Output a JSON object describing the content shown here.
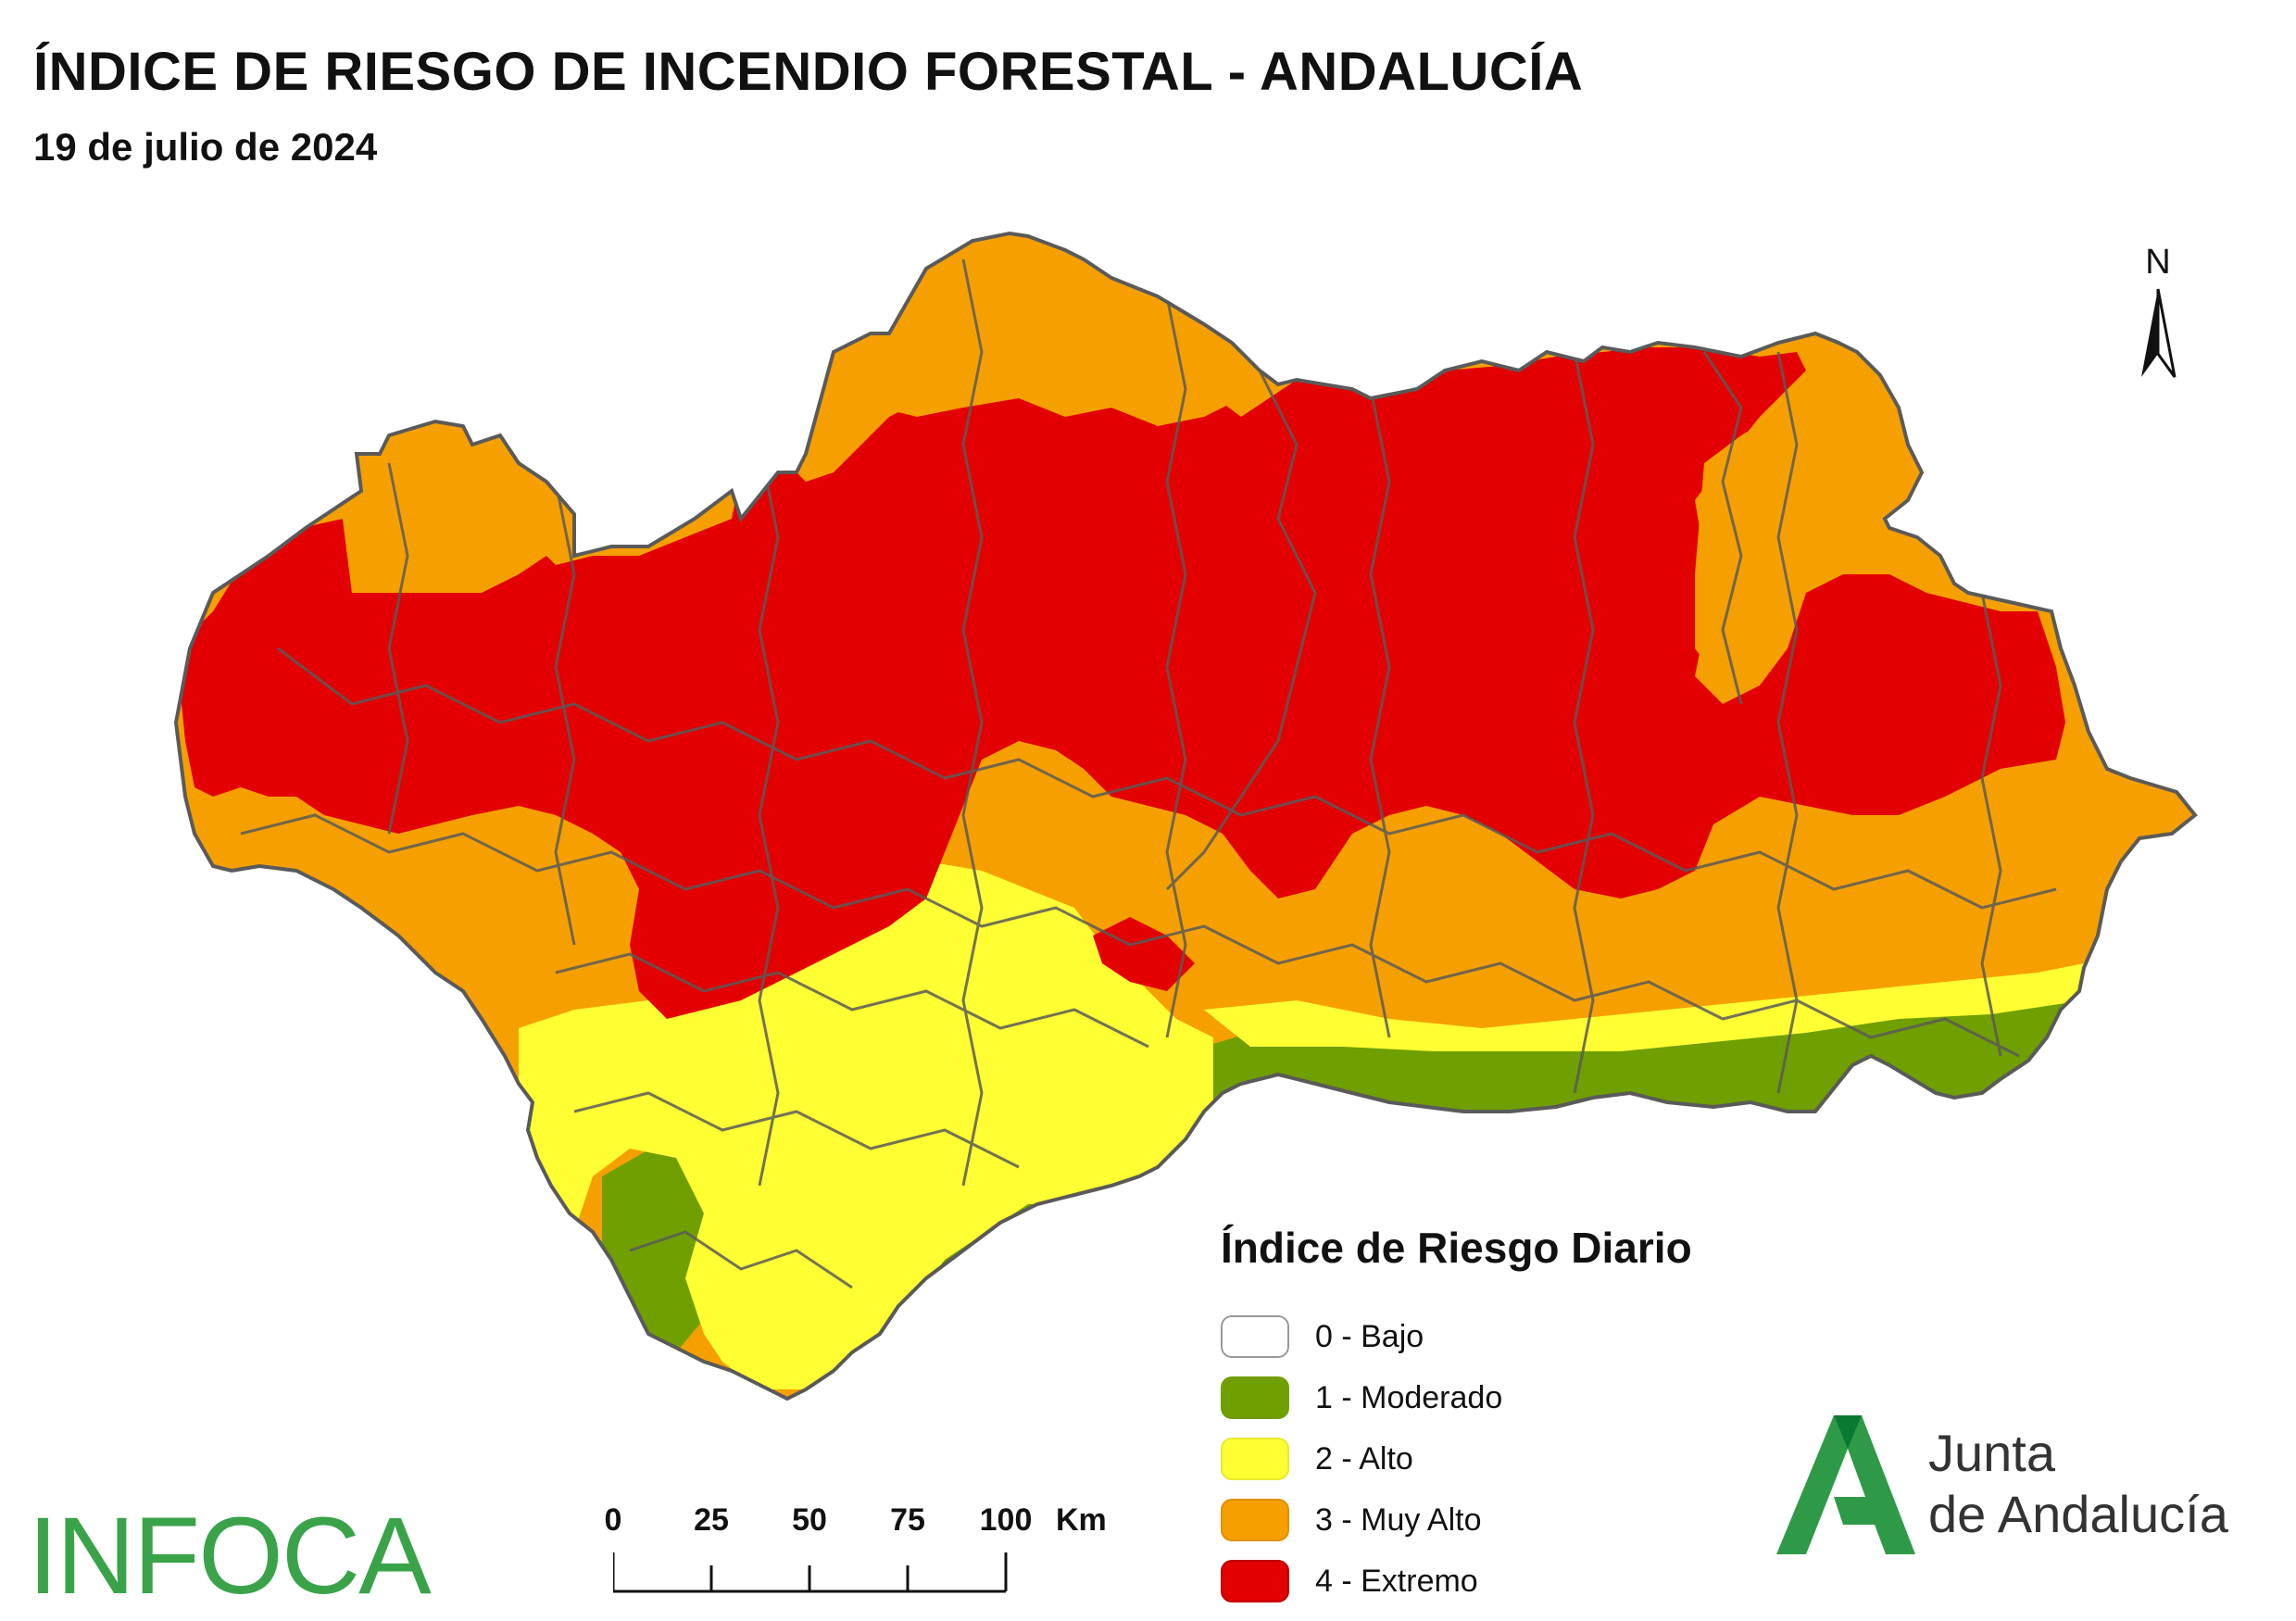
{
  "header": {
    "title": "ÍNDICE DE RIESGO DE INCENDIO FORESTAL - ANDALUCÍA",
    "date": "19 de julio de 2024"
  },
  "north_arrow": {
    "label": "N",
    "icon": "north-arrow-icon"
  },
  "legend": {
    "title": "Índice de Riesgo Diario",
    "items": [
      {
        "label": "0 - Bajo",
        "color": "#ffffff"
      },
      {
        "label": "1 - Moderado",
        "color": "#6f9f00"
      },
      {
        "label": "2 - Alto",
        "color": "#ffff33"
      },
      {
        "label": "3 - Muy Alto",
        "color": "#f5a000"
      },
      {
        "label": "4 - Extremo",
        "color": "#e30000"
      }
    ]
  },
  "scale_bar": {
    "ticks": [
      "0",
      "25",
      "50",
      "75",
      "100"
    ],
    "unit": "Km"
  },
  "logos": {
    "infoca": "INFOCA",
    "junta_line1": "Junta",
    "junta_line2": "de Andalucía",
    "junta_color": "#2e9a48"
  },
  "map": {
    "region": "Andalucía",
    "boundary_color": "#5a5a5a"
  }
}
